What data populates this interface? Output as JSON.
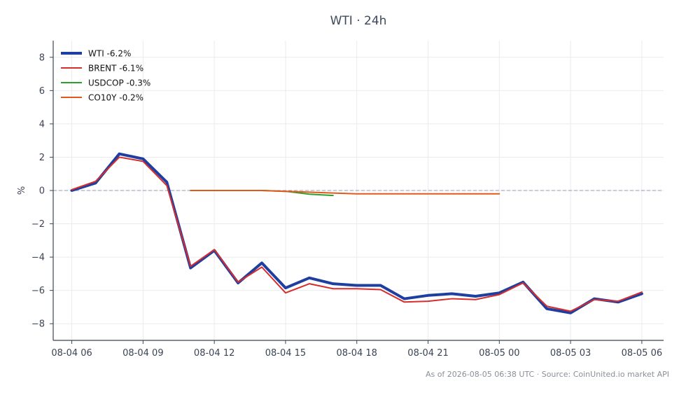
{
  "chart_data": {
    "type": "line",
    "title": "WTI · 24h",
    "xlabel": "",
    "ylabel": "%",
    "xlim": [
      "2026-08-04 05:13",
      "2026-08-05 06:55"
    ],
    "ylim": [
      -9,
      9
    ],
    "x_tick_labels": [
      "08-04 06",
      "08-04 09",
      "08-04 12",
      "08-04 15",
      "08-04 18",
      "08-04 21",
      "08-05 00",
      "08-05 03",
      "08-05 06"
    ],
    "y_ticks": [
      -8,
      -6,
      -4,
      -2,
      0,
      2,
      4,
      6,
      8
    ],
    "y_tick_labels": [
      "−8",
      "−6",
      "−4",
      "−2",
      "0",
      "2",
      "4",
      "6",
      "8"
    ],
    "grid": true,
    "legend_position": "top-left",
    "zero_line": true,
    "series": [
      {
        "name": "WTI -6.2%",
        "color": "#1f3fa0",
        "width": 4,
        "x": [
          "2026-08-04 06:00",
          "2026-08-04 07:00",
          "2026-08-04 08:00",
          "2026-08-04 09:00",
          "2026-08-04 10:00",
          "2026-08-04 11:00",
          "2026-08-04 12:00",
          "2026-08-04 13:00",
          "2026-08-04 14:00",
          "2026-08-04 15:00",
          "2026-08-04 16:00",
          "2026-08-04 17:00",
          "2026-08-04 18:00",
          "2026-08-04 19:00",
          "2026-08-04 20:00",
          "2026-08-04 21:00",
          "2026-08-04 22:00",
          "2026-08-04 23:00",
          "2026-08-05 00:00",
          "2026-08-05 01:00",
          "2026-08-05 02:00",
          "2026-08-05 03:00",
          "2026-08-05 04:00",
          "2026-08-05 05:00",
          "2026-08-05 06:00"
        ],
        "y": [
          0.0,
          0.45,
          2.2,
          1.9,
          0.5,
          -4.65,
          -3.6,
          -5.55,
          -4.35,
          -5.85,
          -5.25,
          -5.6,
          -5.7,
          -5.7,
          -6.5,
          -6.3,
          -6.2,
          -6.35,
          -6.15,
          -5.5,
          -7.1,
          -7.35,
          -6.5,
          -6.7,
          -6.2
        ]
      },
      {
        "name": "BRENT -6.1%",
        "color": "#d62d2d",
        "width": 2,
        "x": [
          "2026-08-04 06:00",
          "2026-08-04 07:00",
          "2026-08-04 08:00",
          "2026-08-04 09:00",
          "2026-08-04 10:00",
          "2026-08-04 11:00",
          "2026-08-04 12:00",
          "2026-08-04 13:00",
          "2026-08-04 14:00",
          "2026-08-04 15:00",
          "2026-08-04 16:00",
          "2026-08-04 17:00",
          "2026-08-04 18:00",
          "2026-08-04 19:00",
          "2026-08-04 20:00",
          "2026-08-04 21:00",
          "2026-08-04 22:00",
          "2026-08-04 23:00",
          "2026-08-05 00:00",
          "2026-08-05 01:00",
          "2026-08-05 02:00",
          "2026-08-05 03:00",
          "2026-08-05 04:00",
          "2026-08-05 05:00",
          "2026-08-05 06:00"
        ],
        "y": [
          0.05,
          0.55,
          2.0,
          1.75,
          0.3,
          -4.55,
          -3.55,
          -5.5,
          -4.6,
          -6.15,
          -5.6,
          -5.9,
          -5.9,
          -5.95,
          -6.7,
          -6.65,
          -6.5,
          -6.55,
          -6.25,
          -5.55,
          -6.95,
          -7.25,
          -6.55,
          -6.65,
          -6.1
        ]
      },
      {
        "name": "USDCOP -0.3%",
        "color": "#2ca02c",
        "width": 2,
        "x": [
          "2026-08-04 11:00",
          "2026-08-04 12:00",
          "2026-08-04 13:00",
          "2026-08-04 14:00",
          "2026-08-04 15:00",
          "2026-08-04 16:00",
          "2026-08-04 17:00"
        ],
        "y": [
          0.0,
          0.0,
          0.0,
          0.0,
          -0.05,
          -0.22,
          -0.3
        ]
      },
      {
        "name": "CO10Y -0.2%",
        "color": "#e0591b",
        "width": 2,
        "x": [
          "2026-08-04 11:00",
          "2026-08-04 12:00",
          "2026-08-04 13:00",
          "2026-08-04 14:00",
          "2026-08-04 15:00",
          "2026-08-04 16:00",
          "2026-08-04 17:00",
          "2026-08-04 18:00",
          "2026-08-04 19:00",
          "2026-08-04 20:00",
          "2026-08-04 21:00",
          "2026-08-04 22:00",
          "2026-08-04 23:00",
          "2026-08-05 00:00"
        ],
        "y": [
          0.0,
          0.0,
          0.0,
          0.0,
          -0.05,
          -0.1,
          -0.15,
          -0.2,
          -0.2,
          -0.2,
          -0.2,
          -0.2,
          -0.2,
          -0.2
        ]
      }
    ]
  },
  "footer": {
    "text": "As of 2026-08-05 06:38 UTC · Source: CoinUnited.io market API"
  }
}
